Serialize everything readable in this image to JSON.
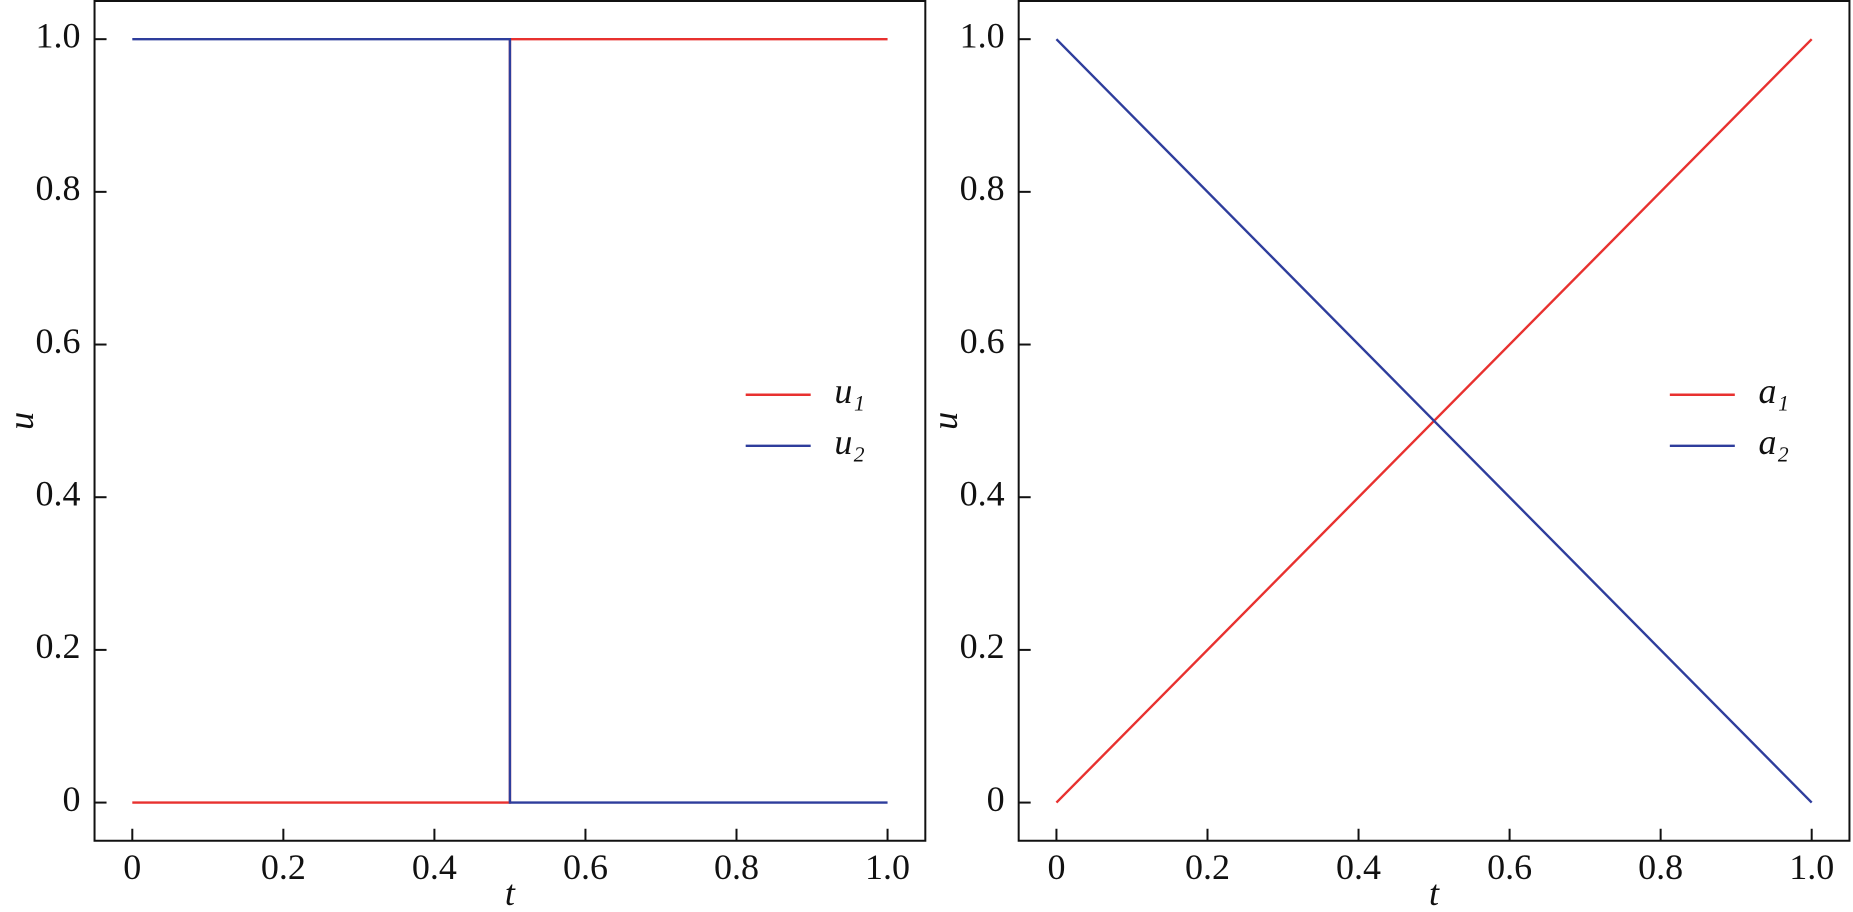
{
  "chart_data": [
    {
      "type": "line",
      "xlabel": "t",
      "ylabel": "u",
      "xlim": [
        -0.05,
        1.05
      ],
      "ylim": [
        -0.05,
        1.05
      ],
      "xticks": [
        0,
        0.2,
        0.4,
        0.6,
        0.8,
        {
          "value": 1,
          "label": "1.0"
        }
      ],
      "yticks": [
        0,
        0.2,
        0.4,
        0.6,
        0.8,
        {
          "value": 1,
          "label": "1.0"
        }
      ],
      "grid": false,
      "legend": "right",
      "series": [
        {
          "name": "u₁",
          "color": "#e8312f",
          "x": [
            0,
            0.5,
            0.5,
            1
          ],
          "values": [
            0,
            0,
            1,
            1
          ]
        },
        {
          "name": "u₂",
          "color": "#2e3d9c",
          "x": [
            0,
            0.5,
            0.5,
            1
          ],
          "values": [
            1,
            1,
            0,
            0
          ]
        }
      ]
    },
    {
      "type": "line",
      "xlabel": "t",
      "ylabel": "u",
      "xlim": [
        -0.05,
        1.05
      ],
      "ylim": [
        -0.05,
        1.05
      ],
      "xticks": [
        0,
        0.2,
        0.4,
        0.6,
        0.8,
        {
          "value": 1,
          "label": "1.0"
        }
      ],
      "yticks": [
        0,
        0.2,
        0.4,
        0.6,
        0.8,
        {
          "value": 1,
          "label": "1.0"
        }
      ],
      "grid": false,
      "legend": "right",
      "series": [
        {
          "name": "a₁",
          "color": "#e8312f",
          "x": [
            0,
            1
          ],
          "values": [
            0,
            1
          ]
        },
        {
          "name": "a₂",
          "color": "#2e3d9c",
          "x": [
            0,
            1
          ],
          "values": [
            1,
            0
          ]
        }
      ]
    }
  ]
}
